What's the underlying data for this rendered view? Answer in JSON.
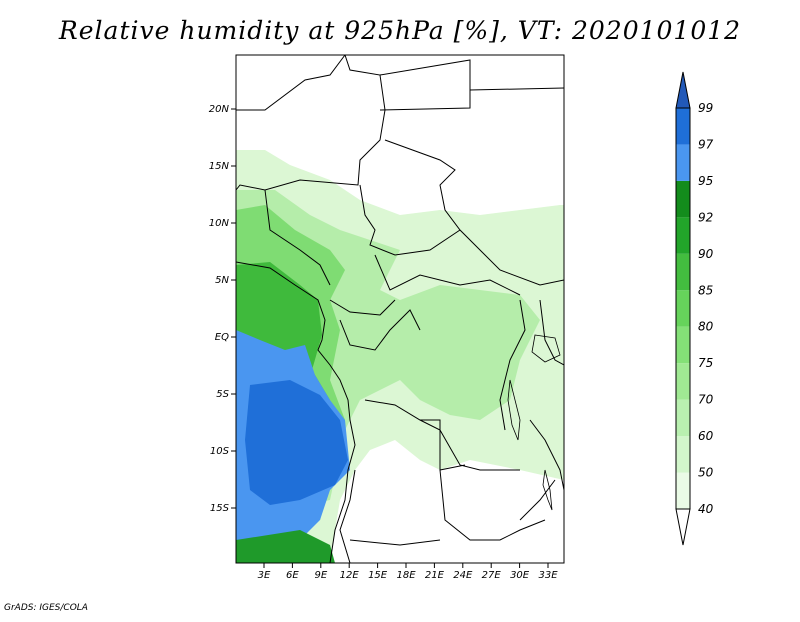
{
  "title": "Relative humidity at 925hPa [%], VT: 2020101012",
  "credit": "GrADS: IGES/COLA",
  "map": {
    "lon_ticks": [
      "3E",
      "6E",
      "9E",
      "12E",
      "15E",
      "18E",
      "21E",
      "24E",
      "27E",
      "30E",
      "33E"
    ],
    "lat_ticks": [
      "20N",
      "15N",
      "10N",
      "5N",
      "EQ",
      "5S",
      "10S",
      "15S"
    ]
  },
  "colorbar": {
    "levels": [
      "40",
      "50",
      "60",
      "70",
      "75",
      "80",
      "85",
      "90",
      "92",
      "95",
      "97",
      "99"
    ],
    "colors": [
      "#ffffff",
      "#eafbe6",
      "#d2f6cb",
      "#b9f0b0",
      "#a0e993",
      "#84e077",
      "#66d35b",
      "#43bd3f",
      "#22a52a",
      "#138c1c",
      "#4a96f0",
      "#1f6fd8",
      "#2259b8"
    ]
  }
}
